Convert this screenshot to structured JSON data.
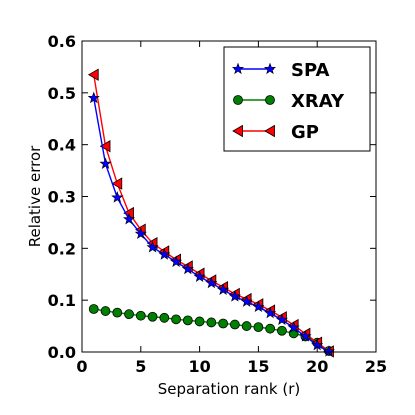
{
  "chart_data": {
    "type": "line",
    "title": "",
    "xlabel": "Separation rank (r)",
    "ylabel": "Relative error",
    "xlim": [
      0,
      25
    ],
    "ylim": [
      0,
      0.6
    ],
    "xticks": [
      "0",
      "5",
      "10",
      "15",
      "20",
      "25"
    ],
    "yticks": [
      "0.0",
      "0.1",
      "0.2",
      "0.3",
      "0.4",
      "0.5",
      "0.6"
    ],
    "grid": false,
    "legend_position": "top-right",
    "series": [
      {
        "name": "SPA",
        "color": "#0000ff",
        "marker": "star",
        "x": [
          1,
          2,
          3,
          4,
          5,
          6,
          7,
          8,
          9,
          10,
          11,
          12,
          13,
          14,
          15,
          16,
          17,
          18,
          19,
          20,
          21
        ],
        "y": [
          0.49,
          0.363,
          0.298,
          0.256,
          0.228,
          0.202,
          0.188,
          0.174,
          0.16,
          0.145,
          0.133,
          0.12,
          0.107,
          0.097,
          0.087,
          0.075,
          0.062,
          0.047,
          0.03,
          0.013,
          0.001
        ]
      },
      {
        "name": "XRAY",
        "color": "#008000",
        "marker": "circle",
        "x": [
          1,
          2,
          3,
          4,
          5,
          6,
          7,
          8,
          9,
          10,
          11,
          12,
          13,
          14,
          15,
          16,
          17,
          18,
          19,
          20,
          21
        ],
        "y": [
          0.083,
          0.079,
          0.076,
          0.073,
          0.07,
          0.068,
          0.066,
          0.063,
          0.061,
          0.059,
          0.057,
          0.055,
          0.053,
          0.05,
          0.048,
          0.045,
          0.041,
          0.036,
          0.03,
          0.018,
          0.002
        ]
      },
      {
        "name": "GP",
        "color": "#ff0000",
        "marker": "triangle-left",
        "x": [
          1,
          2,
          3,
          4,
          5,
          6,
          7,
          8,
          9,
          10,
          11,
          12,
          13,
          14,
          15,
          16,
          17,
          18,
          19,
          20,
          21
        ],
        "y": [
          0.535,
          0.397,
          0.325,
          0.268,
          0.236,
          0.21,
          0.194,
          0.178,
          0.165,
          0.151,
          0.138,
          0.125,
          0.112,
          0.102,
          0.092,
          0.08,
          0.067,
          0.052,
          0.035,
          0.018,
          0.001
        ]
      }
    ]
  }
}
